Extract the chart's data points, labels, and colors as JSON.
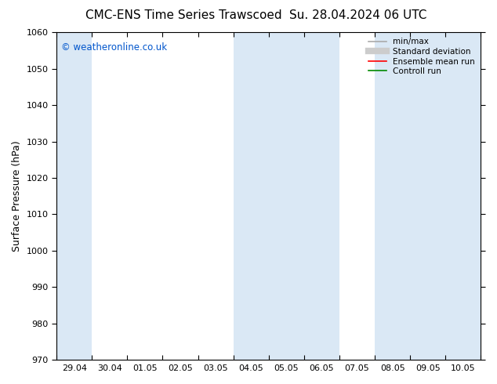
{
  "title": "CMC-ENS Time Series Trawscoed",
  "title2": "Su. 28.04.2024 06 UTC",
  "ylabel": "Surface Pressure (hPa)",
  "ylim": [
    970,
    1060
  ],
  "yticks": [
    970,
    980,
    990,
    1000,
    1010,
    1020,
    1030,
    1040,
    1050,
    1060
  ],
  "xtick_labels": [
    "29.04",
    "30.04",
    "01.05",
    "02.05",
    "03.05",
    "04.05",
    "05.05",
    "06.05",
    "07.05",
    "08.05",
    "09.05",
    "10.05"
  ],
  "background_color": "#ffffff",
  "plot_bg_color": "#ffffff",
  "shaded_color": "#dae8f5",
  "copyright_text": "© weatheronline.co.uk",
  "copyright_color": "#0055cc",
  "legend_items": [
    {
      "label": "min/max",
      "color": "#aaaaaa",
      "lw": 1.2
    },
    {
      "label": "Standard deviation",
      "color": "#cccccc",
      "lw": 5
    },
    {
      "label": "Ensemble mean run",
      "color": "#ff0000",
      "lw": 1.2
    },
    {
      "label": "Controll run",
      "color": "#008800",
      "lw": 1.2
    }
  ],
  "title_fontsize": 11,
  "tick_fontsize": 8,
  "label_fontsize": 9,
  "n_cols": 12,
  "shaded_ranges": [
    [
      0,
      1
    ],
    [
      5,
      8
    ],
    [
      9,
      12
    ]
  ]
}
